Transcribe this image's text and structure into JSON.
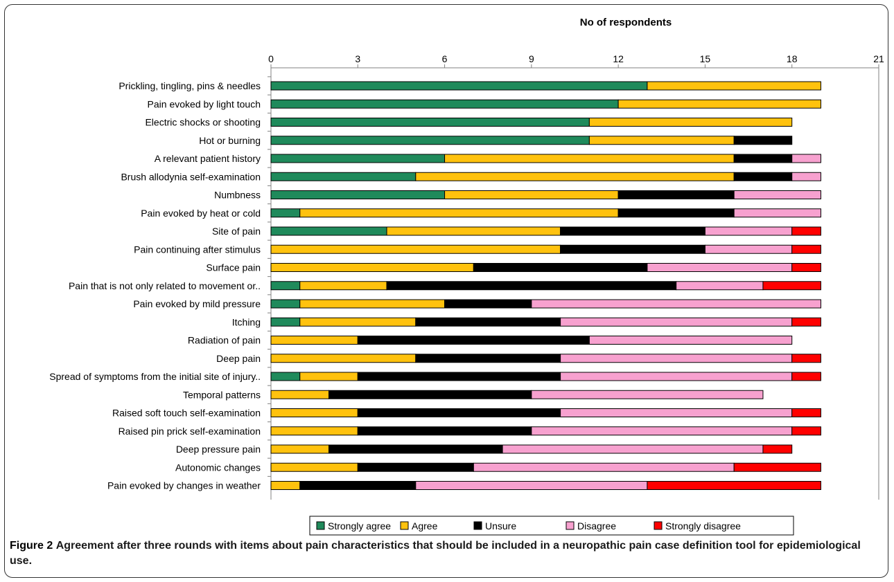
{
  "chart_data": {
    "type": "bar",
    "orientation": "horizontal",
    "stacked": true,
    "axis_title": "No of respondents",
    "xlim": [
      0,
      21
    ],
    "xticks": [
      0,
      3,
      6,
      9,
      12,
      15,
      18,
      21
    ],
    "categories": [
      "Prickling, tingling, pins & needles",
      "Pain evoked by light touch",
      "Electric shocks or shooting",
      "Hot or burning",
      "A relevant patient history",
      "Brush allodynia self-examination",
      "Numbness",
      "Pain evoked by heat or cold",
      "Site of pain",
      "Pain continuing after stimulus",
      "Surface pain",
      "Pain that is not only related to movement or..",
      "Pain evoked by mild pressure",
      "Itching",
      "Radiation of pain",
      "Deep pain",
      "Spread of symptoms from the initial site of injury..",
      "Temporal patterns",
      "Raised soft touch self-examination",
      "Raised pin prick self-examination",
      "Deep pressure pain",
      "Autonomic changes",
      "Pain evoked by changes in weather"
    ],
    "series": [
      {
        "name": "Strongly agree",
        "color": "#1f8a5b",
        "values": [
          13,
          12,
          11,
          11,
          6,
          5,
          6,
          1,
          4,
          0,
          0,
          1,
          1,
          1,
          0,
          0,
          1,
          0,
          0,
          0,
          0,
          0,
          0
        ]
      },
      {
        "name": "Agree",
        "color": "#ffc20e",
        "values": [
          6,
          7,
          7,
          5,
          10,
          11,
          6,
          11,
          6,
          10,
          7,
          3,
          5,
          4,
          3,
          5,
          2,
          2,
          3,
          3,
          2,
          3,
          1
        ]
      },
      {
        "name": "Unsure",
        "color": "#000000",
        "values": [
          0,
          0,
          0,
          2,
          2,
          2,
          4,
          4,
          5,
          5,
          6,
          10,
          3,
          5,
          8,
          5,
          7,
          7,
          7,
          6,
          6,
          4,
          4
        ]
      },
      {
        "name": "Disagree",
        "color": "#f7a1cf",
        "values": [
          0,
          0,
          0,
          0,
          1,
          1,
          3,
          3,
          3,
          3,
          5,
          3,
          10,
          8,
          7,
          8,
          8,
          8,
          8,
          9,
          9,
          9,
          8
        ]
      },
      {
        "name": "Strongly disagree",
        "color": "#ff0000",
        "values": [
          0,
          0,
          0,
          0,
          0,
          0,
          0,
          0,
          1,
          1,
          1,
          2,
          0,
          1,
          0,
          1,
          1,
          0,
          1,
          1,
          1,
          3,
          6
        ]
      }
    ]
  },
  "caption": {
    "label": "Figure 2",
    "text": "Agreement after three rounds with items about pain characteristics that should be included in a neuropathic pain case definition tool for epidemiological use."
  }
}
